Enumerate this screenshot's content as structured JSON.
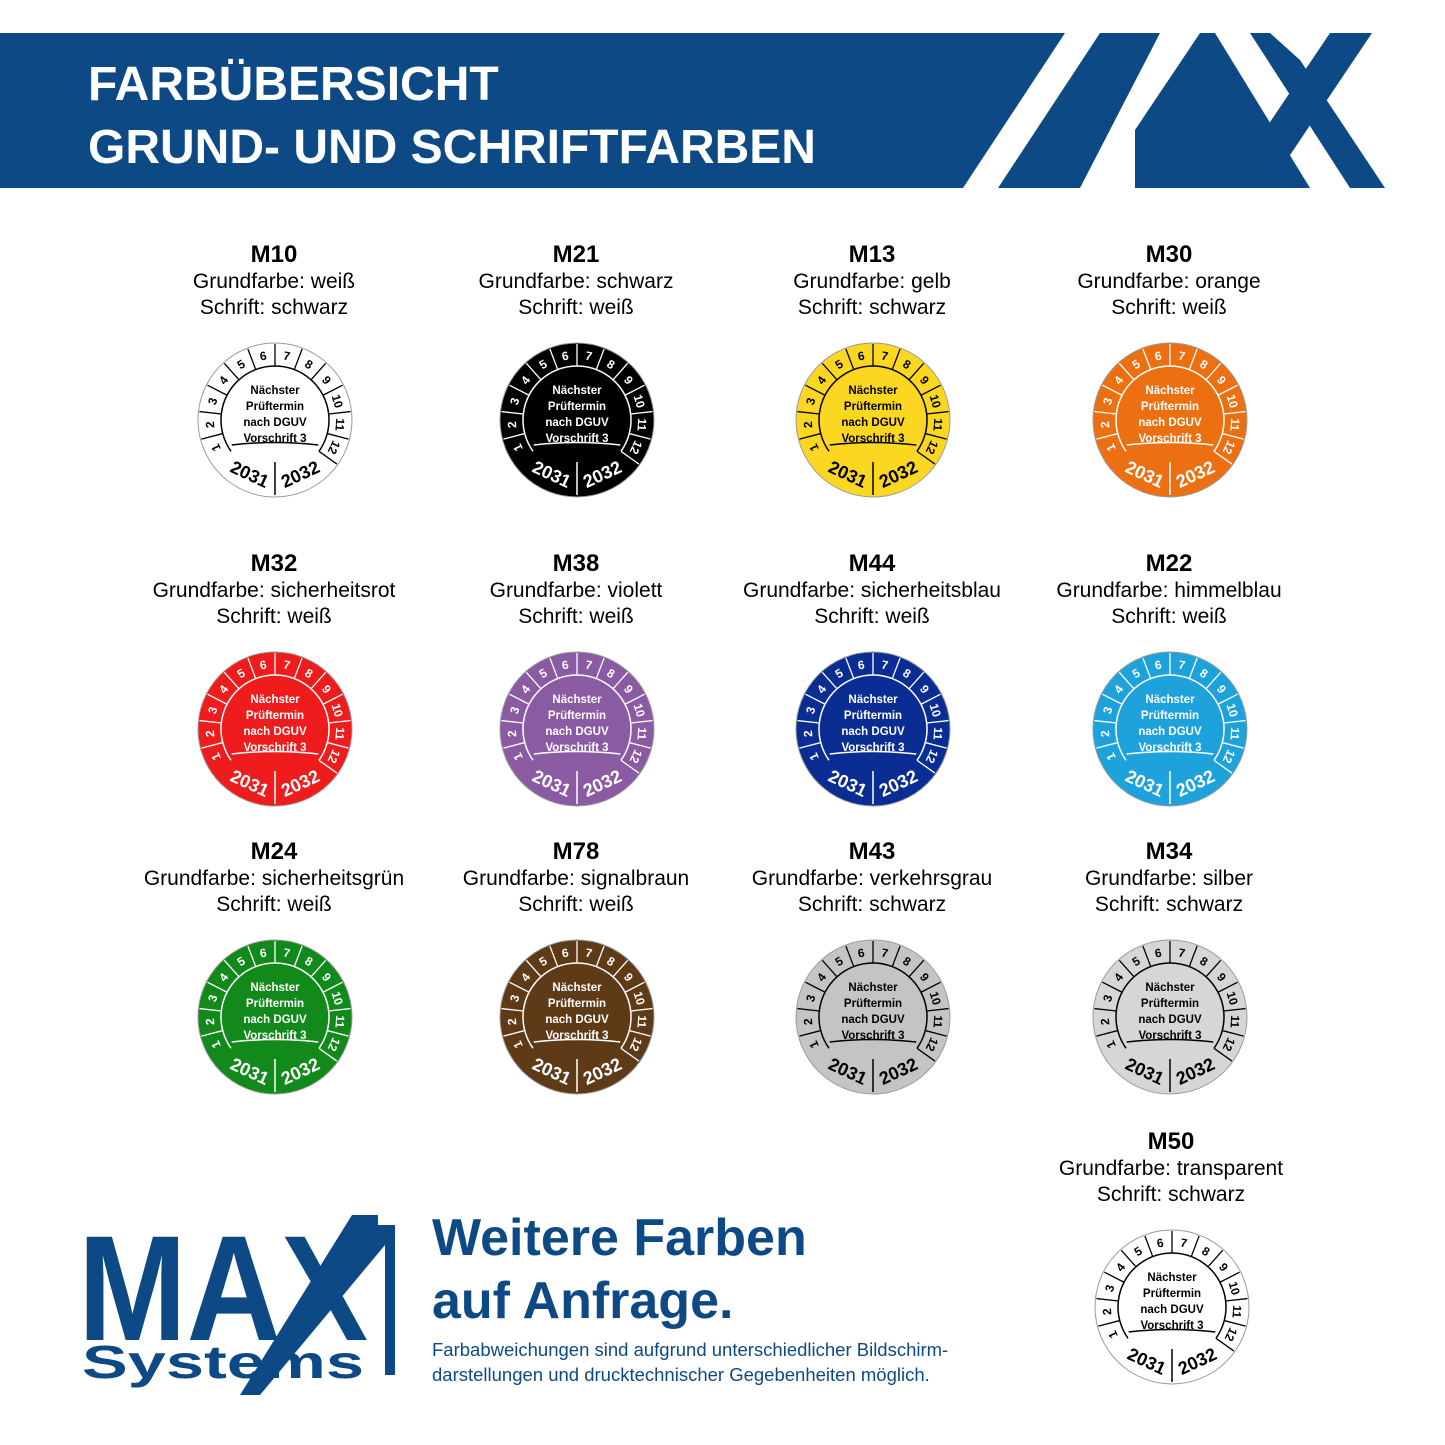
{
  "header": {
    "title_lines": [
      "FARBÜBERSICHT",
      "GRUND- UND SCHRIFTFARBEN"
    ]
  },
  "sticker": {
    "months": [
      "1",
      "2",
      "3",
      "4",
      "5",
      "6",
      "7",
      "8",
      "9",
      "10",
      "11",
      "12"
    ],
    "center": [
      "Nächster",
      "Prüftermin",
      "nach DGUV",
      "Vorschrift 3"
    ],
    "years": [
      "2031",
      "2032"
    ]
  },
  "items": [
    {
      "code": "M10",
      "base": "Grundfarbe: weiß",
      "text": "Schrift: schwarz",
      "fill": "#ffffff",
      "ink": "#000000"
    },
    {
      "code": "M21",
      "base": "Grundfarbe: schwarz",
      "text": "Schrift: weiß",
      "fill": "#000000",
      "ink": "#ffffff"
    },
    {
      "code": "M13",
      "base": "Grundfarbe: gelb",
      "text": "Schrift: schwarz",
      "fill": "#fbd722",
      "ink": "#000000"
    },
    {
      "code": "M30",
      "base": "Grundfarbe: orange",
      "text": "Schrift: weiß",
      "fill": "#ec6f11",
      "ink": "#ffffff"
    },
    {
      "code": "M32",
      "base": "Grundfarbe: sicherheitsrot",
      "text": "Schrift: weiß",
      "fill": "#ee1c1c",
      "ink": "#ffffff"
    },
    {
      "code": "M38",
      "base": "Grundfarbe: violett",
      "text": "Schrift: weiß",
      "fill": "#8a5aa3",
      "ink": "#ffffff"
    },
    {
      "code": "M44",
      "base": "Grundfarbe: sicherheitsblau",
      "text": "Schrift: weiß",
      "fill": "#0a2d94",
      "ink": "#ffffff"
    },
    {
      "code": "M22",
      "base": "Grundfarbe: himmelblau",
      "text": "Schrift: weiß",
      "fill": "#1ea2dc",
      "ink": "#ffffff"
    },
    {
      "code": "M24",
      "base": "Grundfarbe: sicherheitsgrün",
      "text": "Schrift: weiß",
      "fill": "#118a1b",
      "ink": "#ffffff"
    },
    {
      "code": "M78",
      "base": "Grundfarbe: signalbraun",
      "text": "Schrift: weiß",
      "fill": "#5f3a17",
      "ink": "#ffffff"
    },
    {
      "code": "M43",
      "base": "Grundfarbe: verkehrsgrau",
      "text": "Schrift: schwarz",
      "fill": "#c4c4c4",
      "ink": "#000000"
    },
    {
      "code": "M34",
      "base": "Grundfarbe: silber",
      "text": "Schrift: schwarz",
      "fill": "#d6d6d6",
      "ink": "#000000"
    },
    {
      "code": "M50",
      "base": "Grundfarbe: transparent",
      "text": "Schrift: schwarz",
      "fill": "#ffffff",
      "ink": "#000000"
    }
  ],
  "footer": {
    "logo": {
      "name": "MAX",
      "sub": "Systems"
    },
    "headline": [
      "Weitere Farben",
      "auf Anfrage."
    ],
    "note": [
      "Farbabweichungen sind aufgrund unterschiedlicher Bildschirm-",
      "darstellungen und drucktechnischer Gegebenheiten möglich."
    ]
  }
}
